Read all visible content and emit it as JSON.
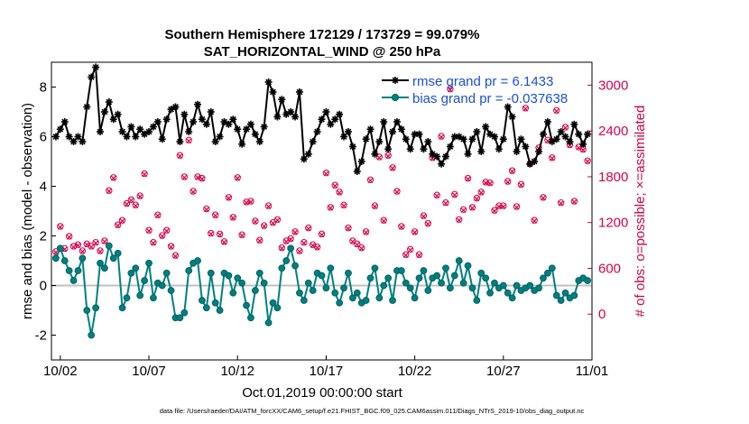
{
  "chart_data": {
    "type": "line",
    "title": "Southern Hemisphere 172129 / 173729 = 99.079%",
    "subtitle": "SAT_HORIZONTAL_WIND @ 250 hPa",
    "xlabel": "Oct.01,2019 00:00:00 start",
    "ylabel": "rmse and bias (model - observation)",
    "ylabel_right": "# of obs: o=possible; ×=assimilated",
    "footer": "data file: /Users/raeder/DAI/ATM_forcXX/CAM6_setup/f.e21.FHIST_BGC.f09_025.CAM6assim.011/Diags_NTrS_2019-10/obs_diag_output.nc",
    "x_ticks": [
      "10/02",
      "10/07",
      "10/12",
      "10/17",
      "10/22",
      "10/27",
      "11/01"
    ],
    "x_tick_days": [
      2,
      7,
      12,
      17,
      22,
      27,
      32
    ],
    "xlim_days": [
      1.5,
      32.0
    ],
    "ylim": [
      -3,
      9
    ],
    "y_ticks": [
      "-2",
      "0",
      "2",
      "4",
      "6",
      "8"
    ],
    "y_tick_values": [
      -2,
      0,
      2,
      4,
      6,
      8
    ],
    "ylim_right": [
      -600,
      3300
    ],
    "y_ticks_right": [
      "0",
      "600",
      "1200",
      "1800",
      "2400",
      "3000"
    ],
    "y_tick_values_right": [
      0,
      600,
      1200,
      1800,
      2400,
      3000
    ],
    "zero_line": true,
    "colors": {
      "rmse": "#000000",
      "bias": "#008080",
      "obs": "#d6004c",
      "zero_line": "#c0c0c0"
    },
    "legend": {
      "placement": "top-right"
    },
    "series": [
      {
        "name": "rmse grand pr = 6.1433",
        "axis": "left",
        "marker": "asterisk",
        "x": [
          1.75,
          2.0,
          2.25,
          2.5,
          2.75,
          3.0,
          3.25,
          3.5,
          3.75,
          4.0,
          4.25,
          4.5,
          4.75,
          5.0,
          5.25,
          5.5,
          5.75,
          6.0,
          6.25,
          6.5,
          6.75,
          7.0,
          7.25,
          7.5,
          7.75,
          8.0,
          8.25,
          8.5,
          8.75,
          9.0,
          9.25,
          9.5,
          9.75,
          10.0,
          10.25,
          10.5,
          10.75,
          11.0,
          11.25,
          11.5,
          11.75,
          12.0,
          12.25,
          12.5,
          12.75,
          13.0,
          13.25,
          13.5,
          13.75,
          14.0,
          14.25,
          14.5,
          14.75,
          15.0,
          15.25,
          15.5,
          15.75,
          16.0,
          16.25,
          16.5,
          16.75,
          17.0,
          17.25,
          17.5,
          17.75,
          18.0,
          18.25,
          18.5,
          18.75,
          19.0,
          19.25,
          19.5,
          19.75,
          20.0,
          20.25,
          20.5,
          20.75,
          21.0,
          21.25,
          21.5,
          21.75,
          22.0,
          22.25,
          22.5,
          22.75,
          23.0,
          23.25,
          23.5,
          23.75,
          24.0,
          24.25,
          24.5,
          24.75,
          25.0,
          25.25,
          25.5,
          25.75,
          26.0,
          26.25,
          26.5,
          26.75,
          27.0,
          27.25,
          27.5,
          27.75,
          28.0,
          28.25,
          28.5,
          28.75,
          29.0,
          29.25,
          29.5,
          29.75,
          30.0,
          30.25,
          30.5,
          30.75,
          31.0,
          31.25,
          31.5,
          31.75
        ],
        "values": [
          6.0,
          6.3,
          6.6,
          6.0,
          5.8,
          6.0,
          5.8,
          7.2,
          8.4,
          8.8,
          6.2,
          7.0,
          7.4,
          6.7,
          6.9,
          6.2,
          6.0,
          6.4,
          6.0,
          6.3,
          6.1,
          6.2,
          6.4,
          6.6,
          5.9,
          6.7,
          7.1,
          7.2,
          5.8,
          6.9,
          6.2,
          6.6,
          7.3,
          6.7,
          6.5,
          7.0,
          5.8,
          6.0,
          6.6,
          6.5,
          6.7,
          6.3,
          5.7,
          6.3,
          6.5,
          6.1,
          5.8,
          6.4,
          8.2,
          7.8,
          6.8,
          7.5,
          6.9,
          7.0,
          6.8,
          7.8,
          5.1,
          5.3,
          5.8,
          6.2,
          6.7,
          7.0,
          6.5,
          6.7,
          6.9,
          6.0,
          6.2,
          5.6,
          4.6,
          5.0,
          5.9,
          6.3,
          5.3,
          5.8,
          6.6,
          5.5,
          6.2,
          6.6,
          6.3,
          5.9,
          5.5,
          6.1,
          6.1,
          5.5,
          5.8,
          5.3,
          5.2,
          4.9,
          5.2,
          5.6,
          6.0,
          6.0,
          5.9,
          5.3,
          5.9,
          6.2,
          5.4,
          6.4,
          6.1,
          6.0,
          5.5,
          5.9,
          7.2,
          6.8,
          5.4,
          5.9,
          5.6,
          4.9,
          5.0,
          5.4,
          6.1,
          6.6,
          5.8,
          5.9,
          6.2,
          6.0,
          5.8,
          6.5,
          6.1,
          5.7,
          6.1
        ]
      },
      {
        "name": "bias grand pr = -0.037638",
        "axis": "left",
        "marker": "circle",
        "x": [
          1.75,
          2.0,
          2.25,
          2.5,
          2.75,
          3.0,
          3.25,
          3.5,
          3.75,
          4.0,
          4.25,
          4.5,
          4.75,
          5.0,
          5.25,
          5.5,
          5.75,
          6.0,
          6.25,
          6.5,
          6.75,
          7.0,
          7.25,
          7.5,
          7.75,
          8.0,
          8.25,
          8.5,
          8.75,
          9.0,
          9.25,
          9.5,
          9.75,
          10.0,
          10.25,
          10.5,
          10.75,
          11.0,
          11.25,
          11.5,
          11.75,
          12.0,
          12.25,
          12.5,
          12.75,
          13.0,
          13.25,
          13.5,
          13.75,
          14.0,
          14.25,
          14.5,
          14.75,
          15.0,
          15.25,
          15.5,
          15.75,
          16.0,
          16.25,
          16.5,
          16.75,
          17.0,
          17.25,
          17.5,
          17.75,
          18.0,
          18.25,
          18.5,
          18.75,
          19.0,
          19.25,
          19.5,
          19.75,
          20.0,
          20.25,
          20.5,
          20.75,
          21.0,
          21.25,
          21.5,
          21.75,
          22.0,
          22.25,
          22.5,
          22.75,
          23.0,
          23.25,
          23.5,
          23.75,
          24.0,
          24.25,
          24.5,
          24.75,
          25.0,
          25.25,
          25.5,
          25.75,
          26.0,
          26.25,
          26.5,
          26.75,
          27.0,
          27.25,
          27.5,
          27.75,
          28.0,
          28.25,
          28.5,
          28.75,
          29.0,
          29.25,
          29.5,
          29.75,
          30.0,
          30.25,
          30.5,
          30.75,
          31.0,
          31.25,
          31.5,
          31.75
        ],
        "values": [
          1.1,
          1.5,
          1.0,
          0.6,
          0.2,
          0.6,
          1.1,
          -1.0,
          -2.0,
          -0.9,
          0.9,
          0.7,
          1.6,
          1.1,
          1.3,
          -0.9,
          -0.5,
          0.5,
          0.7,
          -0.4,
          0.2,
          0.9,
          -0.5,
          0.1,
          0.0,
          0.5,
          -0.2,
          -1.3,
          -1.3,
          -1.1,
          0.6,
          0.9,
          1.0,
          -0.6,
          -0.9,
          0.5,
          -0.7,
          -1.0,
          0.5,
          0.4,
          -0.3,
          0.3,
          0.1,
          -0.8,
          -1.3,
          -0.2,
          0.5,
          0.1,
          -1.5,
          -0.7,
          -0.9,
          0.7,
          1.0,
          1.5,
          0.8,
          -0.3,
          -0.6,
          0.1,
          -0.2,
          0.5,
          0.4,
          -0.1,
          0.7,
          -0.3,
          -0.7,
          -0.1,
          0.5,
          -0.5,
          -0.3,
          -0.7,
          -0.6,
          0.3,
          0.7,
          -0.5,
          0.0,
          0.3,
          -0.6,
          0.6,
          0.6,
          0.1,
          -0.1,
          -0.5,
          0.3,
          0.6,
          -0.2,
          0.3,
          0.4,
          0.1,
          0.7,
          -0.1,
          0.4,
          1.0,
          0.1,
          0.8,
          -0.1,
          -0.6,
          0.5,
          0.3,
          -0.3,
          0.1,
          -0.1,
          0.0,
          -0.3,
          -0.5,
          0.0,
          -0.2,
          -0.1,
          0.0,
          -0.2,
          -0.1,
          0.3,
          0.5,
          0.7,
          -0.4,
          -0.6,
          -0.3,
          -0.5,
          -0.4,
          0.2,
          0.3,
          0.2
        ]
      },
      {
        "name": "possible",
        "axis": "right",
        "marker": "o",
        "x": [
          1.75,
          2.0,
          2.25,
          2.5,
          2.75,
          3.0,
          3.25,
          3.5,
          3.75,
          4.0,
          4.25,
          4.5,
          4.75,
          5.0,
          5.25,
          5.5,
          5.75,
          6.0,
          6.25,
          6.5,
          6.75,
          7.0,
          7.25,
          7.5,
          7.75,
          8.0,
          8.25,
          8.5,
          8.75,
          9.0,
          9.25,
          9.5,
          9.75,
          10.0,
          10.25,
          10.5,
          10.75,
          11.0,
          11.25,
          11.5,
          11.75,
          12.0,
          12.25,
          12.5,
          12.75,
          13.0,
          13.25,
          13.5,
          13.75,
          14.0,
          14.25,
          14.5,
          14.75,
          15.0,
          15.25,
          15.5,
          15.75,
          16.0,
          16.25,
          16.5,
          16.75,
          17.0,
          17.25,
          17.5,
          17.75,
          18.0,
          18.25,
          18.5,
          18.75,
          19.0,
          19.25,
          19.5,
          19.75,
          20.0,
          20.25,
          20.5,
          20.75,
          21.0,
          21.25,
          21.5,
          21.75,
          22.0,
          22.25,
          22.5,
          22.75,
          23.0,
          23.25,
          23.5,
          23.75,
          24.0,
          24.25,
          24.5,
          24.75,
          25.0,
          25.25,
          25.5,
          25.75,
          26.0,
          26.25,
          26.5,
          26.75,
          27.0,
          27.25,
          27.5,
          27.75,
          28.0,
          28.25,
          28.5,
          28.75,
          29.0,
          29.25,
          29.5,
          29.75,
          30.0,
          30.25,
          30.5,
          30.75,
          31.0,
          31.25,
          31.5,
          31.75
        ],
        "values": [
          820,
          1150,
          860,
          1020,
          890,
          910,
          830,
          920,
          890,
          940,
          830,
          960,
          1620,
          1790,
          1170,
          1230,
          1450,
          1500,
          1430,
          1550,
          1840,
          1100,
          940,
          1300,
          1030,
          1100,
          890,
          770,
          2080,
          1800,
          2280,
          1610,
          1800,
          1780,
          1380,
          1060,
          1300,
          1050,
          950,
          1530,
          1270,
          1790,
          1040,
          1470,
          1480,
          1220,
          970,
          1160,
          1420,
          1200,
          1240,
          870,
          960,
          990,
          1080,
          830,
          940,
          1130,
          910,
          880,
          1050,
          1850,
          1400,
          1690,
          1600,
          1430,
          1130,
          960,
          920,
          870,
          1080,
          1760,
          1420,
          2060,
          1230,
          2080,
          1920,
          1610,
          1150,
          780,
          850,
          1080,
          780,
          1290,
          1190,
          2050,
          1560,
          2330,
          1460,
          2950,
          1570,
          1240,
          1370,
          1780,
          1400,
          1520,
          1600,
          1730,
          1720,
          1360,
          1420,
          1420,
          1740,
          1880,
          1410,
          1700,
          2700,
          1970,
          1230,
          2180,
          1530,
          2280,
          2050,
          2670,
          1460,
          2450,
          2220,
          1480,
          2190,
          2160,
          2010
        ]
      },
      {
        "name": "assimilated",
        "axis": "right",
        "marker": "x",
        "x": [
          1.75,
          2.0,
          2.25,
          2.5,
          2.75,
          3.0,
          3.25,
          3.5,
          3.75,
          4.0,
          4.25,
          4.5,
          4.75,
          5.0,
          5.25,
          5.5,
          5.75,
          6.0,
          6.25,
          6.5,
          6.75,
          7.0,
          7.25,
          7.5,
          7.75,
          8.0,
          8.25,
          8.5,
          8.75,
          9.0,
          9.25,
          9.5,
          9.75,
          10.0,
          10.25,
          10.5,
          10.75,
          11.0,
          11.25,
          11.5,
          11.75,
          12.0,
          12.25,
          12.5,
          12.75,
          13.0,
          13.25,
          13.5,
          13.75,
          14.0,
          14.25,
          14.5,
          14.75,
          15.0,
          15.25,
          15.5,
          15.75,
          16.0,
          16.25,
          16.5,
          16.75,
          17.0,
          17.25,
          17.5,
          17.75,
          18.0,
          18.25,
          18.5,
          18.75,
          19.0,
          19.25,
          19.5,
          19.75,
          20.0,
          20.25,
          20.5,
          20.75,
          21.0,
          21.25,
          21.5,
          21.75,
          22.0,
          22.25,
          22.5,
          22.75,
          23.0,
          23.25,
          23.5,
          23.75,
          24.0,
          24.25,
          24.5,
          24.75,
          25.0,
          25.25,
          25.5,
          25.75,
          26.0,
          26.25,
          26.5,
          26.75,
          27.0,
          27.25,
          27.5,
          27.75,
          28.0,
          28.25,
          28.5,
          28.75,
          29.0,
          29.25,
          29.5,
          29.75,
          30.0,
          30.25,
          30.5,
          30.75,
          31.0,
          31.25,
          31.5,
          31.75
        ],
        "values": [
          810,
          1140,
          850,
          1010,
          880,
          900,
          820,
          910,
          880,
          930,
          820,
          950,
          1610,
          1780,
          1160,
          1220,
          1440,
          1490,
          1420,
          1540,
          1830,
          1090,
          930,
          1290,
          1020,
          1090,
          880,
          760,
          2070,
          1790,
          2270,
          1600,
          1790,
          1770,
          1370,
          1050,
          1290,
          1040,
          940,
          1520,
          1260,
          1780,
          1030,
          1460,
          1470,
          1210,
          960,
          1150,
          1410,
          1190,
          1230,
          860,
          950,
          980,
          1070,
          820,
          930,
          1120,
          900,
          870,
          1040,
          1840,
          1390,
          1680,
          1590,
          1420,
          1120,
          950,
          910,
          860,
          1070,
          1750,
          1410,
          2050,
          1220,
          2070,
          1910,
          1600,
          1140,
          770,
          840,
          1070,
          770,
          1280,
          1180,
          2040,
          1550,
          2320,
          1450,
          2940,
          1560,
          1230,
          1360,
          1770,
          1390,
          1510,
          1590,
          1720,
          1710,
          1350,
          1410,
          1410,
          1730,
          1870,
          1400,
          1690,
          2690,
          1960,
          1220,
          2170,
          1520,
          2270,
          2040,
          2660,
          1450,
          2440,
          2210,
          1470,
          2180,
          2150,
          2000
        ]
      }
    ]
  }
}
